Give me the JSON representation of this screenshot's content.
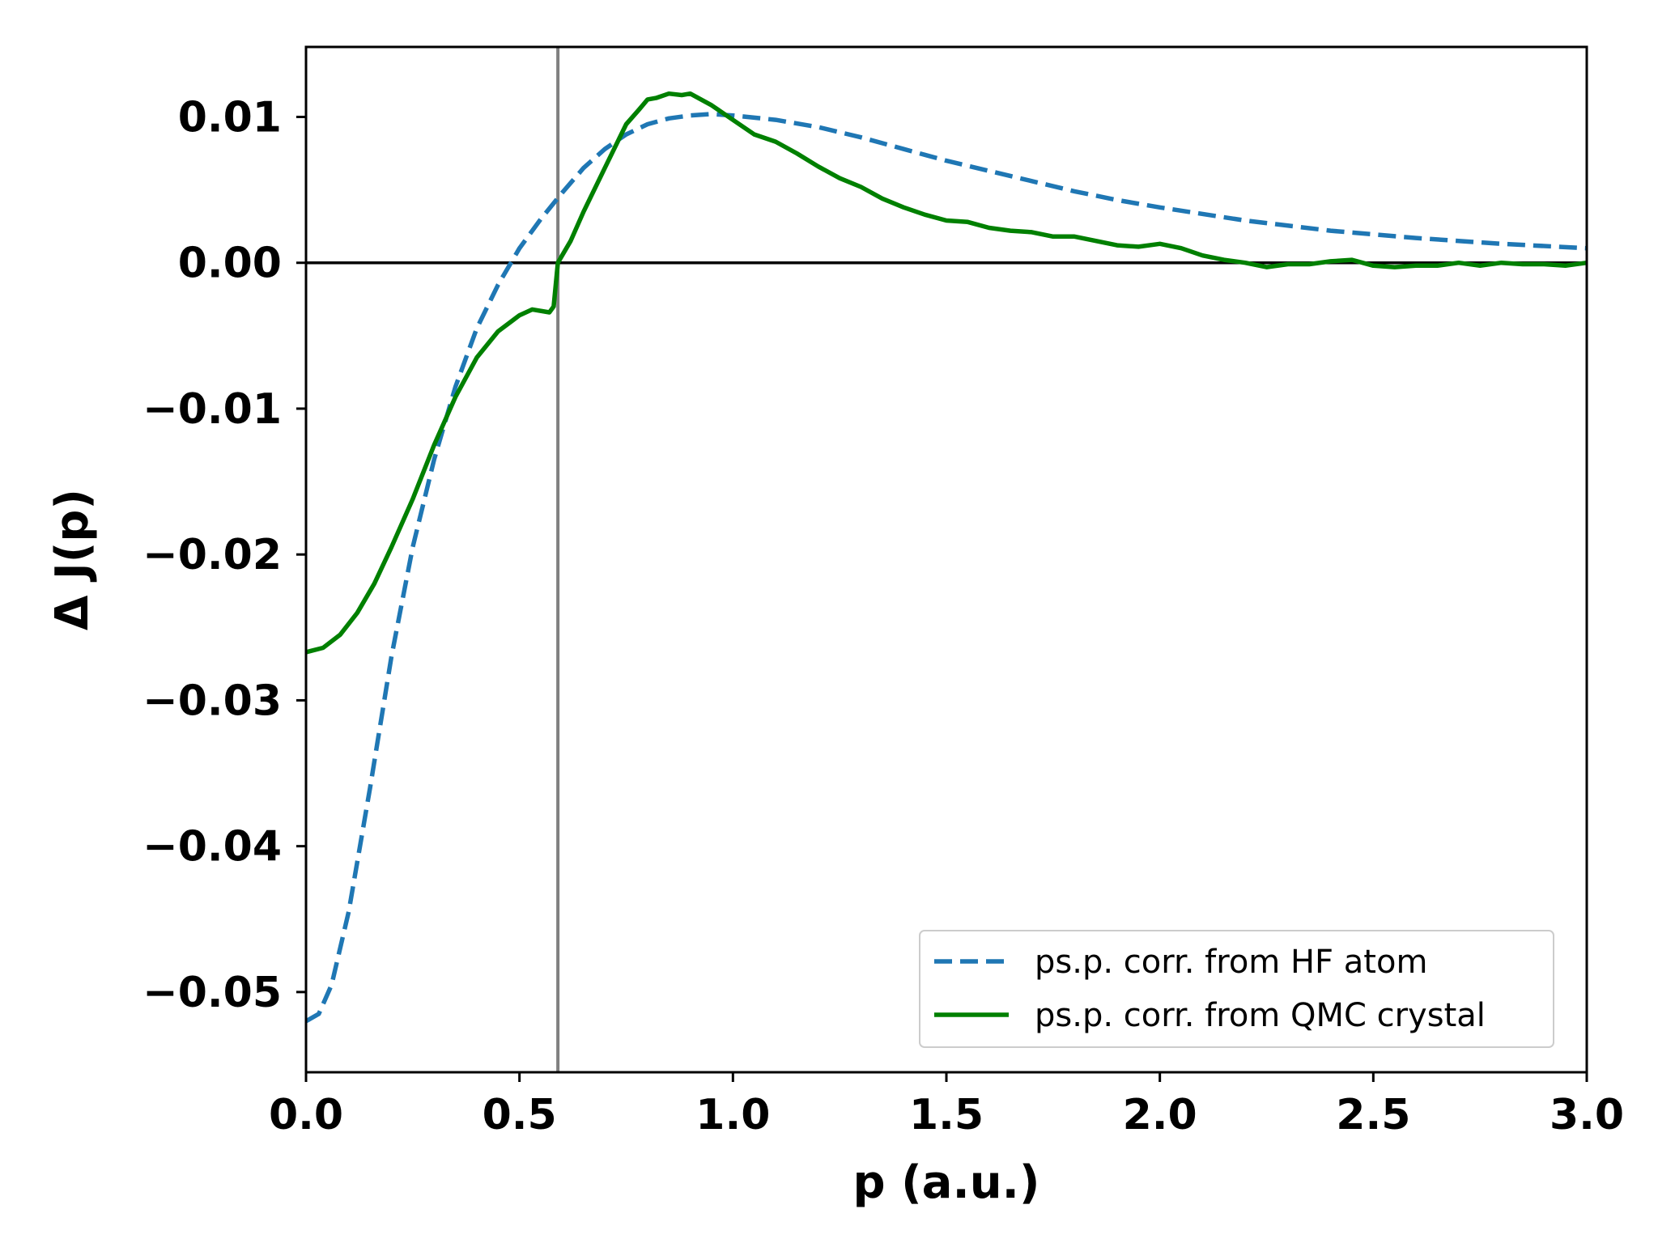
{
  "chart_data": {
    "type": "line",
    "xlabel": "p (a.u.)",
    "ylabel": "Δ J(p)",
    "xlim": [
      0.0,
      3.0
    ],
    "ylim": [
      -0.0555,
      0.0148
    ],
    "x_ticks": [
      0.0,
      0.5,
      1.0,
      1.5,
      2.0,
      2.5,
      3.0
    ],
    "x_tick_labels": [
      "0.0",
      "0.5",
      "1.0",
      "1.5",
      "2.0",
      "2.5",
      "3.0"
    ],
    "y_ticks": [
      0.01,
      0.0,
      -0.01,
      -0.02,
      -0.03,
      -0.04,
      -0.05
    ],
    "y_tick_labels": [
      "0.01",
      "0.00",
      "−0.01",
      "−0.02",
      "−0.03",
      "−0.04",
      "−0.05"
    ],
    "grid": false,
    "legend_position": "lower-right",
    "reference_lines": {
      "horizontal_y": 0.0,
      "horizontal_color": "#000000",
      "vertical_x": 0.59,
      "vertical_color": "#808080"
    },
    "series": [
      {
        "name": "ps.p. corr. from HF atom",
        "color": "#1f77b4",
        "style": "dashed",
        "x": [
          0.0,
          0.03,
          0.06,
          0.1,
          0.15,
          0.2,
          0.25,
          0.3,
          0.35,
          0.4,
          0.45,
          0.5,
          0.55,
          0.6,
          0.65,
          0.7,
          0.75,
          0.8,
          0.85,
          0.9,
          0.95,
          1.0,
          1.1,
          1.2,
          1.3,
          1.4,
          1.5,
          1.6,
          1.7,
          1.8,
          1.9,
          2.0,
          2.2,
          2.4,
          2.6,
          2.8,
          3.0
        ],
        "y": [
          -0.052,
          -0.0515,
          -0.0495,
          -0.0445,
          -0.036,
          -0.027,
          -0.0195,
          -0.0135,
          -0.0085,
          -0.0045,
          -0.0015,
          0.001,
          0.003,
          0.0048,
          0.0065,
          0.0078,
          0.0088,
          0.0095,
          0.0099,
          0.0101,
          0.0102,
          0.0101,
          0.0098,
          0.0093,
          0.0086,
          0.0078,
          0.007,
          0.0063,
          0.0056,
          0.0049,
          0.0043,
          0.0038,
          0.0029,
          0.0022,
          0.0017,
          0.0013,
          0.001
        ]
      },
      {
        "name": "ps.p. corr. from QMC crystal",
        "color": "#008000",
        "style": "solid",
        "x": [
          0.0,
          0.04,
          0.08,
          0.12,
          0.16,
          0.2,
          0.25,
          0.3,
          0.35,
          0.4,
          0.45,
          0.5,
          0.53,
          0.57,
          0.58,
          0.59,
          0.62,
          0.65,
          0.7,
          0.75,
          0.78,
          0.8,
          0.82,
          0.85,
          0.88,
          0.9,
          0.95,
          1.0,
          1.05,
          1.1,
          1.15,
          1.2,
          1.25,
          1.3,
          1.35,
          1.4,
          1.45,
          1.5,
          1.55,
          1.6,
          1.65,
          1.7,
          1.75,
          1.8,
          1.85,
          1.9,
          1.95,
          2.0,
          2.05,
          2.1,
          2.15,
          2.2,
          2.25,
          2.3,
          2.35,
          2.4,
          2.45,
          2.5,
          2.55,
          2.6,
          2.65,
          2.7,
          2.75,
          2.8,
          2.85,
          2.9,
          2.95,
          3.0
        ],
        "y": [
          -0.0267,
          -0.0264,
          -0.0255,
          -0.024,
          -0.022,
          -0.0195,
          -0.0162,
          -0.0125,
          -0.0092,
          -0.0065,
          -0.0047,
          -0.0036,
          -0.0032,
          -0.0034,
          -0.003,
          0.0,
          0.0015,
          0.0035,
          0.0065,
          0.0095,
          0.0105,
          0.0112,
          0.0113,
          0.0116,
          0.0115,
          0.0116,
          0.0108,
          0.0098,
          0.0088,
          0.0083,
          0.0075,
          0.0066,
          0.0058,
          0.0052,
          0.0044,
          0.0038,
          0.0033,
          0.0029,
          0.0028,
          0.0024,
          0.0022,
          0.0021,
          0.0018,
          0.0018,
          0.0015,
          0.0012,
          0.0011,
          0.0013,
          0.001,
          0.0005,
          0.0002,
          0.0,
          -0.0003,
          -0.0001,
          -0.0001,
          0.0001,
          0.0002,
          -0.0002,
          -0.0003,
          -0.0002,
          -0.0002,
          0.0,
          -0.0002,
          0.0,
          -0.0001,
          -0.0001,
          -0.0002,
          0.0
        ]
      }
    ]
  }
}
